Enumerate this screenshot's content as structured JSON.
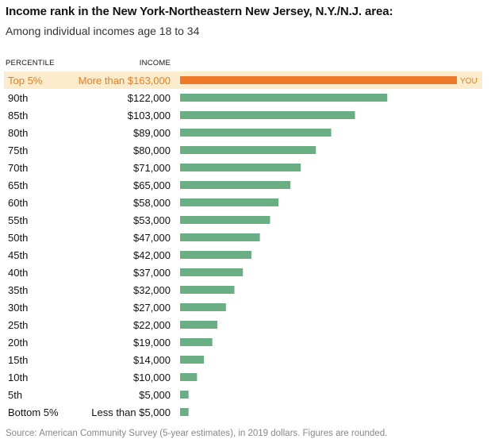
{
  "header": {
    "title": "Income rank in the New York-Northeastern New Jersey, N.Y./N.J. area:",
    "subtitle": "Among individual incomes age 18 to 34"
  },
  "columns": {
    "percentile": "PERCENTILE",
    "income": "INCOME"
  },
  "colors": {
    "bar": "#6aae84",
    "highlight_bar": "#f07a2c",
    "highlight_band": "#fdeccb",
    "highlight_text": "#e87f25",
    "text": "#121212"
  },
  "chart_data": {
    "type": "bar",
    "orientation": "horizontal",
    "title": "Income rank in the New York-Northeastern New Jersey, N.Y./N.J. area:",
    "subtitle": "Among individual incomes age 18 to 34",
    "categories": [
      "Top 5%",
      "90th",
      "85th",
      "80th",
      "75th",
      "70th",
      "65th",
      "60th",
      "55th",
      "50th",
      "45th",
      "40th",
      "35th",
      "30th",
      "25th",
      "20th",
      "15th",
      "10th",
      "5th",
      "Bottom 5%"
    ],
    "labels": [
      "More than $163,000",
      "$122,000",
      "$103,000",
      "$89,000",
      "$80,000",
      "$71,000",
      "$65,000",
      "$58,000",
      "$53,000",
      "$47,000",
      "$42,000",
      "$37,000",
      "$32,000",
      "$27,000",
      "$22,000",
      "$19,000",
      "$14,000",
      "$10,000",
      "$5,000",
      "Less than $5,000"
    ],
    "values": [
      163000,
      122000,
      103000,
      89000,
      80000,
      71000,
      65000,
      58000,
      53000,
      47000,
      42000,
      37000,
      32000,
      27000,
      22000,
      19000,
      14000,
      10000,
      5000,
      5000
    ],
    "highlight_index": 0,
    "highlight_label": "YOU",
    "xlim": [
      0,
      163000
    ],
    "grid": false
  },
  "footer": {
    "source": "Source: American Community Survey (5-year estimates), in 2019 dollars. Figures are rounded."
  }
}
